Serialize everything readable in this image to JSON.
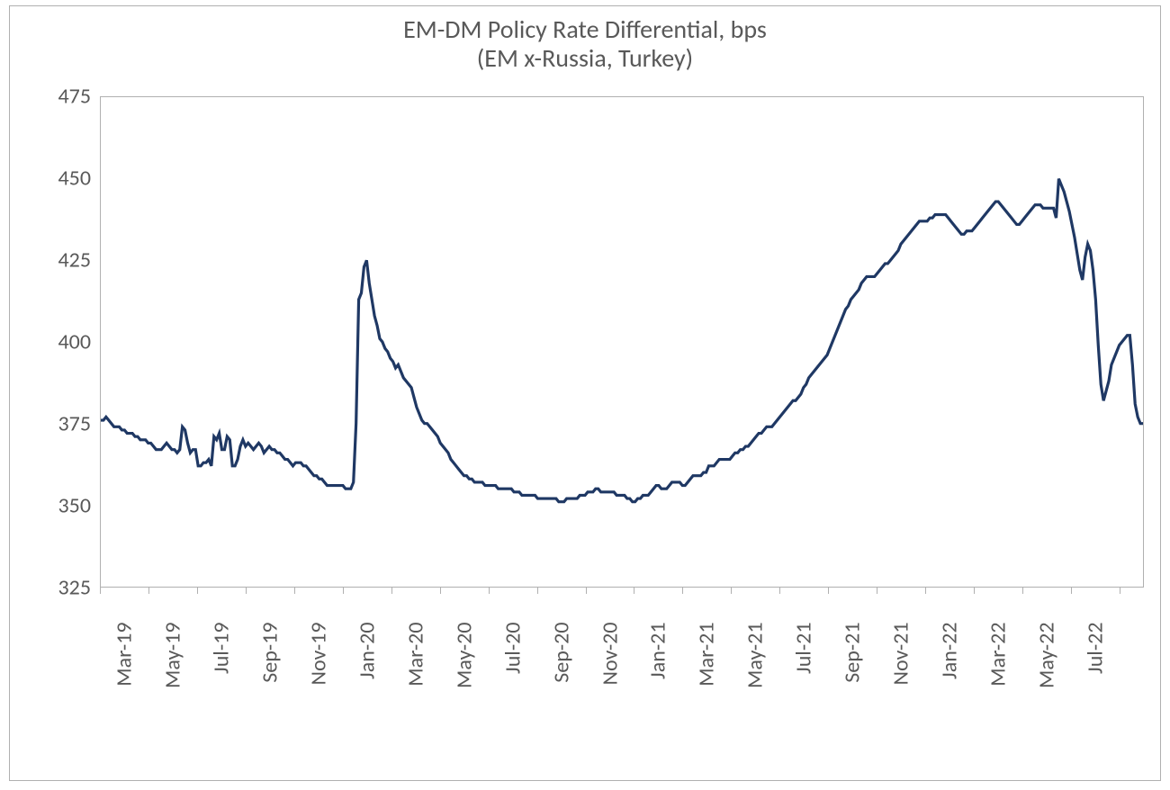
{
  "chart": {
    "type": "line",
    "title_line1": "EM-DM Policy Rate Differential, bps",
    "title_line2": "(EM x-Russia, Turkey)",
    "title_fontsize": 28,
    "title_color": "#595959",
    "axis_label_fontsize": 24,
    "axis_label_color": "#595959",
    "border_color": "#b0b0b0",
    "background_color": "#ffffff",
    "line_color": "#1f3864",
    "line_width": 3.2,
    "ylim": [
      325,
      475
    ],
    "ytick_step": 25,
    "yticks": [
      325,
      350,
      375,
      400,
      425,
      450,
      475
    ],
    "x_categories": [
      "Mar-19",
      "May-19",
      "Jul-19",
      "Sep-19",
      "Nov-19",
      "Jan-20",
      "Mar-20",
      "May-20",
      "Jul-20",
      "Sep-20",
      "Nov-20",
      "Jan-21",
      "Mar-21",
      "May-21",
      "Jul-21",
      "Sep-21",
      "Nov-21",
      "Jan-22",
      "Mar-22",
      "May-22",
      "Jul-22"
    ],
    "n_months": 43,
    "series": [
      376,
      376,
      377,
      376,
      375,
      374,
      374,
      374,
      373,
      373,
      372,
      372,
      372,
      371,
      371,
      370,
      370,
      370,
      369,
      369,
      368,
      367,
      367,
      367,
      368,
      369,
      368,
      367,
      367,
      366,
      367,
      374,
      373,
      369,
      366,
      367,
      367,
      362,
      362,
      363,
      363,
      364,
      362,
      371,
      370,
      372,
      367,
      367,
      371,
      370,
      362,
      362,
      364,
      368,
      370,
      368,
      369,
      368,
      367,
      368,
      369,
      368,
      366,
      367,
      368,
      367,
      367,
      366,
      366,
      365,
      364,
      364,
      363,
      362,
      363,
      363,
      363,
      362,
      362,
      361,
      360,
      359,
      359,
      358,
      358,
      357,
      356,
      356,
      356,
      356,
      356,
      356,
      356,
      355,
      355,
      355,
      357,
      375,
      413,
      415,
      423,
      425,
      418,
      413,
      408,
      405,
      401,
      400,
      398,
      397,
      395,
      394,
      392,
      393,
      391,
      389,
      388,
      387,
      386,
      383,
      380,
      378,
      376,
      375,
      375,
      374,
      373,
      372,
      371,
      369,
      368,
      367,
      366,
      364,
      363,
      362,
      361,
      360,
      359,
      359,
      358,
      358,
      357,
      357,
      357,
      357,
      356,
      356,
      356,
      356,
      356,
      355,
      355,
      355,
      355,
      355,
      355,
      354,
      354,
      354,
      353,
      353,
      353,
      353,
      353,
      353,
      352,
      352,
      352,
      352,
      352,
      352,
      352,
      352,
      351,
      351,
      351,
      352,
      352,
      352,
      352,
      352,
      353,
      353,
      353,
      354,
      354,
      354,
      355,
      355,
      354,
      354,
      354,
      354,
      354,
      354,
      353,
      353,
      353,
      353,
      352,
      352,
      351,
      351,
      352,
      352,
      353,
      353,
      353,
      354,
      355,
      356,
      356,
      355,
      355,
      355,
      356,
      357,
      357,
      357,
      357,
      356,
      356,
      357,
      358,
      359,
      359,
      359,
      359,
      360,
      360,
      362,
      362,
      362,
      363,
      364,
      364,
      364,
      364,
      364,
      365,
      366,
      366,
      367,
      367,
      368,
      368,
      369,
      370,
      371,
      372,
      372,
      373,
      374,
      374,
      374,
      375,
      376,
      377,
      378,
      379,
      380,
      381,
      382,
      382,
      383,
      384,
      386,
      387,
      389,
      390,
      391,
      392,
      393,
      394,
      395,
      396,
      398,
      400,
      402,
      404,
      406,
      408,
      410,
      411,
      413,
      414,
      415,
      416,
      418,
      419,
      420,
      420,
      420,
      420,
      421,
      422,
      423,
      424,
      424,
      425,
      426,
      427,
      428,
      430,
      431,
      432,
      433,
      434,
      435,
      436,
      437,
      437,
      437,
      437,
      438,
      438,
      439,
      439,
      439,
      439,
      439,
      438,
      437,
      436,
      435,
      434,
      433,
      433,
      434,
      434,
      434,
      435,
      436,
      437,
      438,
      439,
      440,
      441,
      442,
      443,
      443,
      442,
      441,
      440,
      439,
      438,
      437,
      436,
      436,
      437,
      438,
      439,
      440,
      441,
      442,
      442,
      442,
      441,
      441,
      441,
      441,
      441,
      438,
      450,
      448,
      446,
      443,
      440,
      436,
      432,
      427,
      422,
      419,
      426,
      430,
      428,
      422,
      413,
      399,
      387,
      382,
      385,
      388,
      393,
      395,
      397,
      399,
      400,
      401,
      402,
      402,
      393,
      381,
      377,
      375,
      375
    ]
  }
}
